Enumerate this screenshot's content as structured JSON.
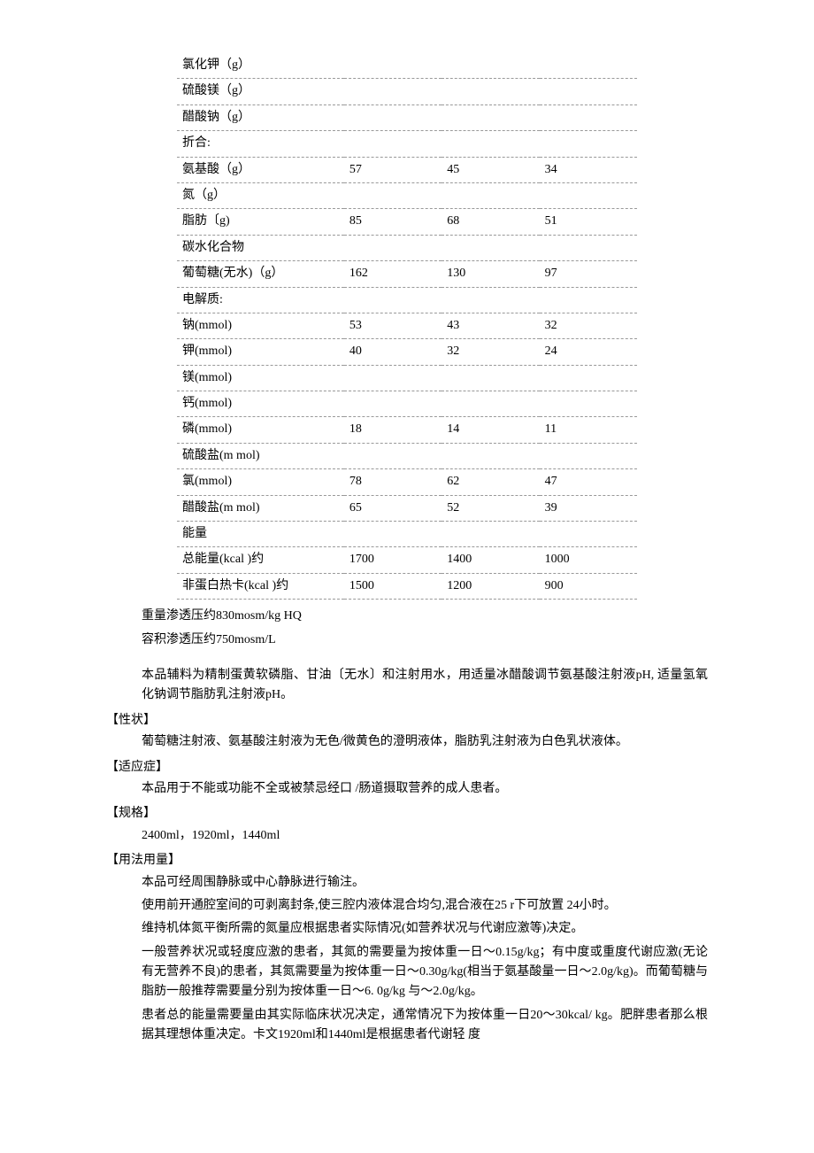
{
  "table": {
    "rows": [
      {
        "label": "氯化钾（g）",
        "v1": "",
        "v2": "",
        "v3": ""
      },
      {
        "label": "硫酸镁（g）",
        "v1": "",
        "v2": "",
        "v3": ""
      },
      {
        "label": "醋酸钠（g）",
        "v1": "",
        "v2": "",
        "v3": ""
      },
      {
        "label": "折合:",
        "v1": "",
        "v2": "",
        "v3": ""
      },
      {
        "label": "氨基酸（g）",
        "v1": "57",
        "v2": "45",
        "v3": "34"
      },
      {
        "label": "氮（g）",
        "v1": "",
        "v2": "",
        "v3": ""
      },
      {
        "label": "脂肪〔g)",
        "v1": "85",
        "v2": "68",
        "v3": "51"
      },
      {
        "label": "碳水化合物",
        "v1": "",
        "v2": "",
        "v3": ""
      },
      {
        "label": "葡萄糖(无水)（g）",
        "v1": "162",
        "v2": "130",
        "v3": "97"
      },
      {
        "label": "电解质:",
        "v1": "",
        "v2": "",
        "v3": ""
      },
      {
        "label": "钠(mmol)",
        "v1": "53",
        "v2": "43",
        "v3": "32"
      },
      {
        "label": "钾(mmol)",
        "v1": "40",
        "v2": "32",
        "v3": "24"
      },
      {
        "label": "镁(mmol)",
        "v1": "",
        "v2": "",
        "v3": ""
      },
      {
        "label": "钙(mmol)",
        "v1": "",
        "v2": "",
        "v3": ""
      },
      {
        "label": "磷(mmol)",
        "v1": "18",
        "v2": "14",
        "v3": "11"
      },
      {
        "label": "硫酸盐(m mol)",
        "v1": "",
        "v2": "",
        "v3": ""
      },
      {
        "label": "氯(mmol)",
        "v1": "78",
        "v2": "62",
        "v3": "47"
      },
      {
        "label": "醋酸盐(m mol)",
        "v1": "65",
        "v2": "52",
        "v3": "39"
      },
      {
        "label": "能量",
        "v1": "",
        "v2": "",
        "v3": ""
      },
      {
        "label": "总能量(kcal )约",
        "v1": "1700",
        "v2": "1400",
        "v3": "1000"
      },
      {
        "label": "非蛋白热卡(kcal )约",
        "v1": "1500",
        "v2": "1200",
        "v3": "900"
      }
    ]
  },
  "osm1": "重量渗透压约830mosm/kg HQ",
  "osm2": "容积渗透压约750mosm/L",
  "excipient": "本品辅料为精制蛋黄软磷脂、甘油〔无水〕和注射用水，用适量冰醋酸调节氨基酸注射液pH, 适量氢氧化钠调节脂肪乳注射液pH。",
  "sections": {
    "xingzhuang_title": "【性状】",
    "xingzhuang_body": "葡萄糖注射液、氨基酸注射液为无色/微黄色的澄明液体，脂肪乳注射液为白色乳状液体。",
    "shiyingzheng_title": "【适应症】",
    "shiyingzheng_body": "本品用于不能或功能不全或被禁忌经口  /肠道摄取营养的成人患者。",
    "guige_title": "【规格】",
    "guige_body": "2400ml，1920ml，1440ml",
    "yongfa_title": "【用法用量】",
    "yongfa_p1": "本品可经周围静脉或中心静脉进行输注。",
    "yongfa_p2": "使用前开通腔室间的可剥离封条,使三腔内液体混合均匀,混合液在25 r下可放置   24小时。",
    "yongfa_p3": "维持机体氮平衡所需的氮量应根据患者实际情况(如营养状况与代谢应激等)决定。",
    "yongfa_p4": "一般营养状况或轻度应激的患者，其氮的需要量为按体重一日〜0.15g/kg；有中度或重度代谢应激(无论有无营养不良)的患者，其氮需要量为按体重一日〜0.30g/kg(相当于氨基酸量一日〜2.0g/kg)。而葡萄糖与脂肪一般推荐需要量分别为按体重一日〜6. 0g/kg 与〜2.0g/kg。",
    "yongfa_p5": "患者总的能量需要量由其实际临床状况决定，通常情况下为按体重一日20〜30kcal/ kg。肥胖患者那么根据其理想体重决定。卡文1920ml和1440ml是根据患者代谢轻   度"
  }
}
